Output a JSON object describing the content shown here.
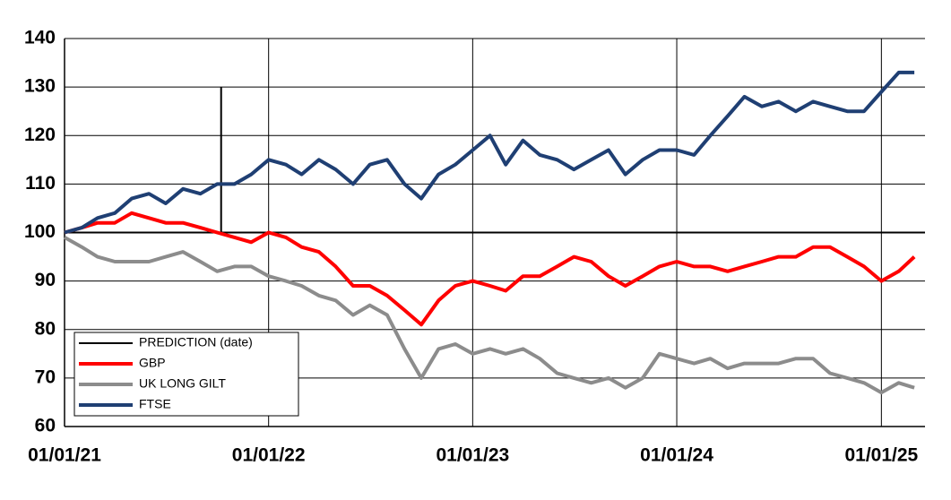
{
  "chart_data": {
    "type": "line",
    "x": [
      "01/01/21",
      "01/02/21",
      "01/03/21",
      "01/04/21",
      "01/05/21",
      "01/06/21",
      "01/07/21",
      "01/08/21",
      "01/09/21",
      "01/10/21",
      "01/11/21",
      "01/12/21",
      "01/01/22",
      "01/02/22",
      "01/03/22",
      "01/04/22",
      "01/05/22",
      "01/06/22",
      "01/07/22",
      "01/08/22",
      "01/09/22",
      "01/10/22",
      "01/11/22",
      "01/12/22",
      "01/01/23",
      "01/02/23",
      "01/03/23",
      "01/04/23",
      "01/05/23",
      "01/06/23",
      "01/07/23",
      "01/08/23",
      "01/09/23",
      "01/10/23",
      "01/11/23",
      "01/12/23",
      "01/01/24",
      "01/02/24",
      "01/03/24",
      "01/04/24",
      "01/05/24",
      "01/06/24",
      "01/07/24",
      "01/08/24",
      "01/09/24",
      "01/10/24",
      "01/11/24",
      "01/12/24",
      "01/01/25",
      "01/02/25",
      "01/03/25"
    ],
    "series": [
      {
        "name": "PREDICTION (date)",
        "color": "#000000",
        "x": [
          "08/10/21",
          "08/10/21"
        ],
        "values": [
          130,
          100
        ]
      },
      {
        "name": "GBP",
        "color": "#ff0000",
        "values": [
          100,
          101,
          102,
          102,
          104,
          103,
          102,
          102,
          101,
          100,
          99,
          98,
          100,
          99,
          97,
          96,
          93,
          89,
          89,
          87,
          84,
          81,
          86,
          89,
          90,
          89,
          88,
          91,
          91,
          93,
          95,
          94,
          91,
          89,
          91,
          93,
          94,
          93,
          93,
          92,
          93,
          94,
          95,
          95,
          97,
          97,
          95,
          93,
          90,
          92,
          95
        ]
      },
      {
        "name": "UK LONG GILT",
        "color": "#8c8c8c",
        "values": [
          99,
          97,
          95,
          94,
          94,
          94,
          95,
          96,
          94,
          92,
          93,
          93,
          91,
          90,
          89,
          87,
          86,
          83,
          85,
          83,
          76,
          70,
          76,
          77,
          75,
          76,
          75,
          76,
          74,
          71,
          70,
          69,
          70,
          68,
          70,
          75,
          74,
          73,
          74,
          72,
          73,
          73,
          73,
          74,
          74,
          71,
          70,
          69,
          67,
          69,
          68
        ]
      },
      {
        "name": "FTSE",
        "color": "#1f3f73",
        "values": [
          100,
          101,
          103,
          104,
          107,
          108,
          106,
          109,
          108,
          110,
          110,
          112,
          115,
          114,
          112,
          115,
          113,
          110,
          114,
          115,
          110,
          107,
          112,
          114,
          117,
          120,
          114,
          119,
          116,
          115,
          113,
          115,
          117,
          112,
          115,
          117,
          117,
          116,
          120,
          124,
          128,
          126,
          127,
          125,
          127,
          126,
          125,
          125,
          129,
          133,
          133
        ]
      }
    ],
    "xlim": [
      "01/01/21",
      "20/03/25"
    ],
    "xticks": [
      "01/01/21",
      "01/01/22",
      "01/01/23",
      "01/01/24",
      "01/01/25"
    ],
    "ylim": [
      60,
      140
    ],
    "yticks": [
      60,
      70,
      80,
      90,
      100,
      110,
      120,
      130,
      140
    ],
    "hline": 100,
    "grid": true,
    "legend": "lower left"
  }
}
